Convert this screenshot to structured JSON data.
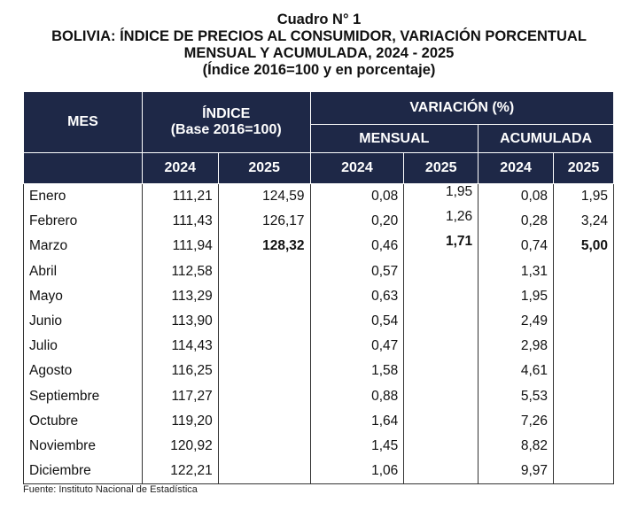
{
  "title": {
    "line1": "Cuadro N° 1",
    "line2": "BOLIVIA: ÍNDICE DE PRECIOS AL CONSUMIDOR, VARIACIÓN PORCENTUAL",
    "line3": "MENSUAL Y ACUMULADA, 2024 - 2025",
    "line4": "(Índice 2016=100 y en porcentaje)"
  },
  "header": {
    "mes": "MES",
    "indice": "ÍNDICE",
    "indice_base": "(Base 2016=100)",
    "variacion": "VARIACIÓN (%)",
    "mensual": "MENSUAL",
    "acumulada": "ACUMULADA",
    "years": [
      "2024",
      "2025",
      "2024",
      "2025",
      "2024",
      "2025"
    ]
  },
  "colors": {
    "header_bg": "#1e2847"
  },
  "rows": [
    [
      "Enero",
      "111,21",
      "124,59",
      "0,08",
      "1,95",
      "0,08",
      "1,95"
    ],
    [
      "Febrero",
      "111,43",
      "126,17",
      "0,20",
      "1,26",
      "0,28",
      "3,24"
    ],
    [
      "Marzo",
      "111,94",
      "128,32",
      "0,46",
      "1,71",
      "0,74",
      "5,00"
    ],
    [
      "Abril",
      "112,58",
      "",
      "0,57",
      "",
      "1,31",
      ""
    ],
    [
      "Mayo",
      "113,29",
      "",
      "0,63",
      "",
      "1,95",
      ""
    ],
    [
      "Junio",
      "113,90",
      "",
      "0,54",
      "",
      "2,49",
      ""
    ],
    [
      "Julio",
      "114,43",
      "",
      "0,47",
      "",
      "2,98",
      ""
    ],
    [
      "Agosto",
      "116,25",
      "",
      "1,58",
      "",
      "4,61",
      ""
    ],
    [
      "Septiembre",
      "117,27",
      "",
      "0,88",
      "",
      "5,53",
      ""
    ],
    [
      "Octubre",
      "119,20",
      "",
      "1,64",
      "",
      "7,26",
      ""
    ],
    [
      "Noviembre",
      "120,92",
      "",
      "1,45",
      "",
      "8,82",
      ""
    ],
    [
      "Diciembre",
      "122,21",
      "",
      "1,06",
      "",
      "9,97",
      ""
    ]
  ],
  "bold_latest_row": 2,
  "source": "Fuente: Instituto Nacional de Estadística"
}
